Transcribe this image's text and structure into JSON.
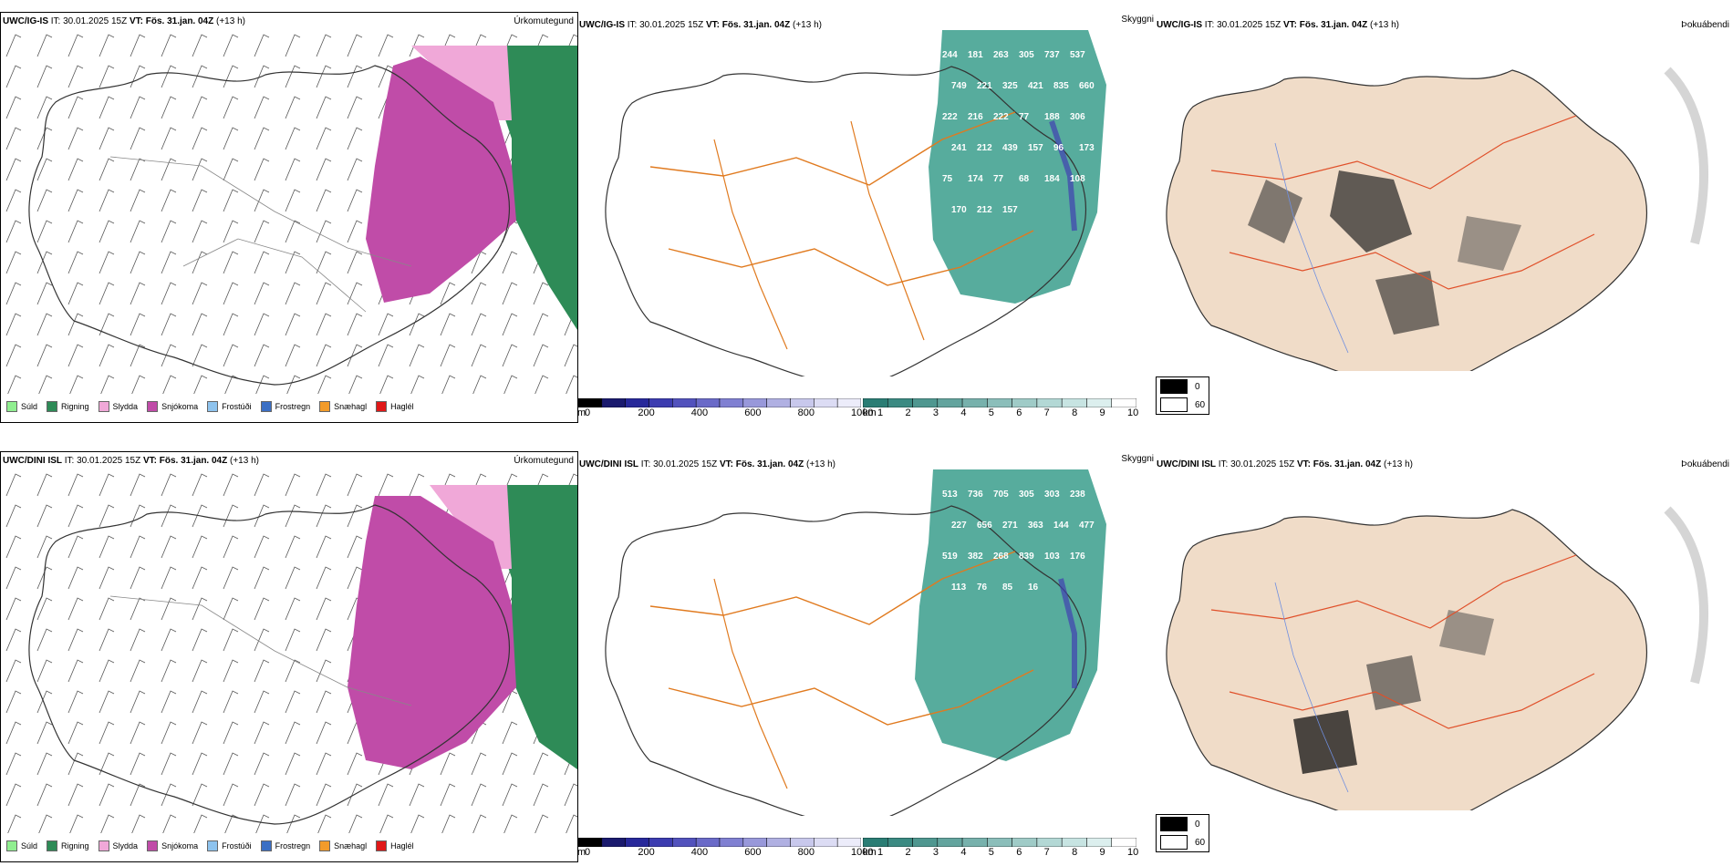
{
  "rows": [
    {
      "model": "UWC/IG-IS",
      "it_label": "IT:",
      "it_value": "30.01.2025 15Z",
      "vt_label": "VT:",
      "vt_value": "Fös. 31.jan. 04Z",
      "lead": "(+13 h)",
      "snow_labels": [
        "244",
        "181",
        "263",
        "305",
        "737",
        "537",
        "749",
        "221",
        "325",
        "421",
        "835",
        "660",
        "222",
        "216",
        "222",
        "77",
        "188",
        "306",
        "241",
        "212",
        "439",
        "157",
        "96",
        "173",
        "75",
        "174",
        "77",
        "68",
        "184",
        "108",
        "170",
        "212",
        "157"
      ]
    },
    {
      "model": "UWC/DINI ISL",
      "it_label": "IT:",
      "it_value": "30.01.2025 15Z",
      "vt_label": "VT:",
      "vt_value": "Fös. 31.jan. 04Z",
      "lead": "(+13 h)",
      "snow_labels": [
        "513",
        "736",
        "705",
        "305",
        "303",
        "238",
        "227",
        "656",
        "271",
        "363",
        "144",
        "477",
        "519",
        "382",
        "268",
        "839",
        "103",
        "176",
        "113",
        "76",
        "85",
        "16"
      ]
    }
  ],
  "panels": {
    "precip_type": "Úrkomutegund",
    "visibility": "Skyggni",
    "cloud_base": "Þokuábendi"
  },
  "precip_legend": [
    {
      "label": "Súld",
      "color": "#90ee90"
    },
    {
      "label": "Rigning",
      "color": "#2e8b57"
    },
    {
      "label": "Slydda",
      "color": "#f0a8d8"
    },
    {
      "label": "Snjókoma",
      "color": "#c04ca8"
    },
    {
      "label": "Frostúði",
      "color": "#8ec3ee"
    },
    {
      "label": "Frostregn",
      "color": "#3b6fc4"
    },
    {
      "label": "Snæhagl",
      "color": "#f29b2a"
    },
    {
      "label": "Haglél",
      "color": "#e01818"
    }
  ],
  "snow_scale": {
    "unit": "m",
    "ticks": [
      "0",
      "200",
      "400",
      "600",
      "800",
      "1000"
    ],
    "colors": [
      "#000000",
      "#1a1a6e",
      "#27289a",
      "#3c3cb0",
      "#5252bd",
      "#6a6ac8",
      "#8080d2",
      "#9898da",
      "#b0b0e2",
      "#c8c8ec",
      "#dcdcf4",
      "#ececfa"
    ]
  },
  "vis_scale": {
    "unit": "km",
    "ticks": [
      "1",
      "2",
      "3",
      "4",
      "5",
      "6",
      "7",
      "8",
      "9",
      "10"
    ],
    "colors": [
      "#2a7d74",
      "#3b8a82",
      "#4f9790",
      "#63a49e",
      "#77b1ac",
      "#8bbeba",
      "#9fcbc7",
      "#b3d8d5",
      "#c7e4e2",
      "#dcefee",
      "#ffffff"
    ]
  },
  "cloud_legend": [
    {
      "label": "0",
      "color": "#000000"
    },
    {
      "label": "60",
      "color": "#ffffff"
    }
  ],
  "colors": {
    "snow": "#c04ca8",
    "sleet": "#f0a8d8",
    "rain": "#2e8b57",
    "vis_teal": "#3a9e8c",
    "land_tan": "#f0dcc8",
    "roads_orange": "#e07a1f",
    "roads_red": "#e0502a",
    "rivers_blue": "#6f8fe0"
  }
}
